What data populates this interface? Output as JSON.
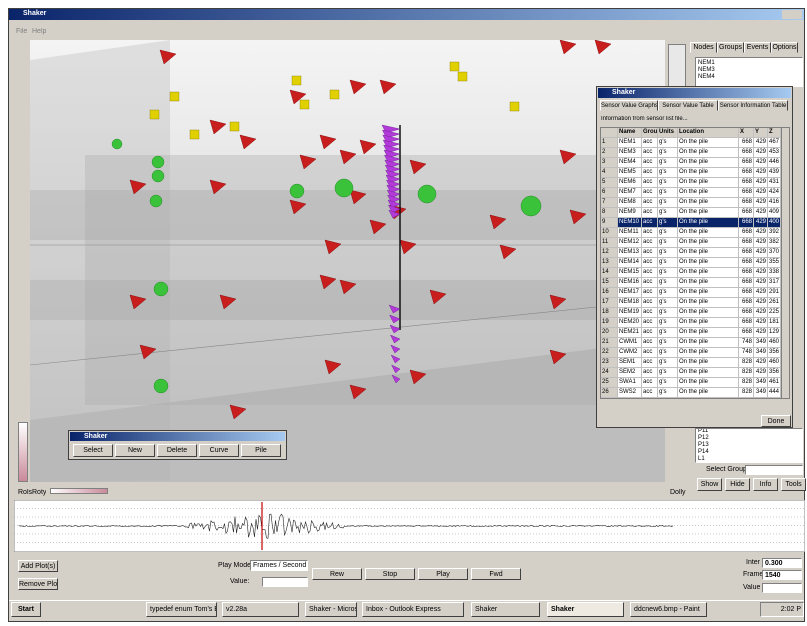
{
  "window": {
    "title": "Shaker",
    "menu": [
      "File",
      "Help"
    ]
  },
  "viewport": {
    "rotate_labels": [
      "Rols",
      "Roty"
    ],
    "dolly_label": "Dolly"
  },
  "side_panel": {
    "tabs": [
      "Nodes",
      "Groups",
      "Events",
      "Options"
    ],
    "nodes_top": [
      "NEM1",
      "NEM3",
      "NEM4"
    ],
    "nodes_bottom": [
      "P11",
      "P12",
      "P13",
      "P14",
      "L1"
    ],
    "select_group": "Select Group:",
    "buttons": [
      "Show",
      "Hide",
      "Info",
      "Tools"
    ]
  },
  "sensor_window": {
    "title": "Shaker",
    "tabs": [
      "Sensor Value Graphs",
      "Sensor Value Table",
      "Sensor Information Table"
    ],
    "caption": "Information from sensor list file...",
    "columns": [
      "Name",
      "Group",
      "Units",
      "Location",
      "X",
      "Y",
      "Z"
    ],
    "selected_row": 8,
    "rows": [
      [
        "1",
        "NEM1",
        "acc",
        "g's",
        "On the pile",
        "668",
        "429",
        "467"
      ],
      [
        "2",
        "NEM3",
        "acc",
        "g's",
        "On the pile",
        "668",
        "429",
        "453"
      ],
      [
        "3",
        "NEM4",
        "acc",
        "g's",
        "On the pile",
        "668",
        "429",
        "446"
      ],
      [
        "4",
        "NEM5",
        "acc",
        "g's",
        "On the pile",
        "668",
        "429",
        "439"
      ],
      [
        "5",
        "NEM6",
        "acc",
        "g's",
        "On the pile",
        "668",
        "429",
        "431"
      ],
      [
        "6",
        "NEM7",
        "acc",
        "g's",
        "On the pile",
        "668",
        "429",
        "424"
      ],
      [
        "7",
        "NEM8",
        "acc",
        "g's",
        "On the pile",
        "668",
        "429",
        "416"
      ],
      [
        "8",
        "NEM9",
        "acc",
        "g's",
        "On the pile",
        "668",
        "429",
        "409"
      ],
      [
        "9",
        "NEM10",
        "acc",
        "g's",
        "On the pile",
        "668",
        "429",
        "400"
      ],
      [
        "10",
        "NEM11",
        "acc",
        "g's",
        "On the pile",
        "668",
        "429",
        "392"
      ],
      [
        "11",
        "NEM12",
        "acc",
        "g's",
        "On the pile",
        "668",
        "429",
        "382"
      ],
      [
        "12",
        "NEM13",
        "acc",
        "g's",
        "On the pile",
        "668",
        "429",
        "370"
      ],
      [
        "13",
        "NEM14",
        "acc",
        "g's",
        "On the pile",
        "668",
        "429",
        "355"
      ],
      [
        "14",
        "NEM15",
        "acc",
        "g's",
        "On the pile",
        "668",
        "429",
        "338"
      ],
      [
        "15",
        "NEM16",
        "acc",
        "g's",
        "On the pile",
        "668",
        "429",
        "317"
      ],
      [
        "16",
        "NEM17",
        "acc",
        "g's",
        "On the pile",
        "668",
        "429",
        "291"
      ],
      [
        "17",
        "NEM18",
        "acc",
        "g's",
        "On the pile",
        "668",
        "429",
        "261"
      ],
      [
        "18",
        "NEM19",
        "acc",
        "g's",
        "On the pile",
        "668",
        "429",
        "225"
      ],
      [
        "19",
        "NEM20",
        "acc",
        "g's",
        "On the pile",
        "668",
        "429",
        "181"
      ],
      [
        "20",
        "NEM21",
        "acc",
        "g's",
        "On the pile",
        "668",
        "429",
        "129"
      ],
      [
        "21",
        "CWM1",
        "acc",
        "g's",
        "On the pile",
        "748",
        "349",
        "460"
      ],
      [
        "22",
        "CWM2",
        "acc",
        "g's",
        "On the pile",
        "748",
        "349",
        "356"
      ],
      [
        "23",
        "SEM1",
        "acc",
        "g's",
        "On the pile",
        "828",
        "429",
        "460"
      ],
      [
        "24",
        "SEM2",
        "acc",
        "g's",
        "On the pile",
        "828",
        "429",
        "356"
      ],
      [
        "25",
        "SWA1",
        "acc",
        "g's",
        "On the pile",
        "828",
        "349",
        "461"
      ],
      [
        "26",
        "SWS2",
        "acc",
        "g's",
        "On the pile",
        "828",
        "349",
        "444"
      ]
    ],
    "button": "Done"
  },
  "tool_dialog": {
    "title": "Shaker",
    "buttons": [
      "Select",
      "New",
      "Delete",
      "Curve",
      "Pile"
    ]
  },
  "controls": {
    "add_plots": "Add Plot(s)",
    "remove_plots": "Remove Plots",
    "play_mode_label": "Play Mode:",
    "play_mode": "Frames / Second",
    "value_label": "Value:",
    "transport": [
      "Rew",
      "Stop",
      "Play",
      "Fwd"
    ],
    "inter_label": "Inter",
    "inter": "0.300",
    "frame_label": "Frame",
    "frame": "1540",
    "value2_label": "Value"
  },
  "taskbar": {
    "start": "Start",
    "items": [
      "typedef enum Tom's Bud...",
      "v2.28a",
      "Shaker - Microsoft Visual ...",
      "Inbox - Outlook Express",
      "Shaker",
      "Shaker",
      "ddcnew6.bmp - Paint"
    ],
    "clock": "2:02 P"
  }
}
